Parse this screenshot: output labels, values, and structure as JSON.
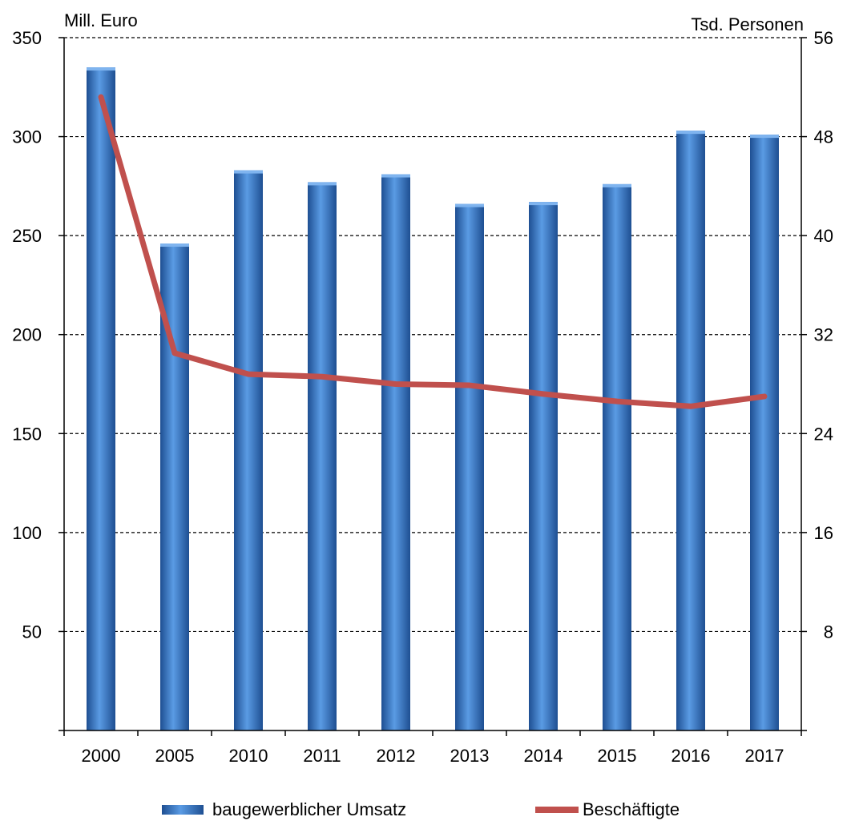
{
  "chart_data": {
    "type": "bar",
    "categories": [
      "2000",
      "2005",
      "2010",
      "2011",
      "2012",
      "2013",
      "2014",
      "2015",
      "2016",
      "2017"
    ],
    "series": [
      {
        "name": "baugewerblicher Umsatz",
        "type": "bar",
        "axis": "left",
        "values": [
          335,
          246,
          283,
          277,
          281,
          266,
          267,
          276,
          303,
          301
        ],
        "color": "#3f7fcf"
      },
      {
        "name": "Beschäftigte",
        "type": "line",
        "axis": "right",
        "values": [
          51.2,
          30.5,
          28.8,
          28.6,
          28.0,
          27.9,
          27.2,
          26.6,
          26.2,
          27.0
        ],
        "color": "#c0504d"
      }
    ],
    "ylabel_left": "Mill. Euro",
    "ylabel_right": "Tsd. Personen",
    "ylim_left": [
      0,
      350
    ],
    "ylim_right": [
      0,
      56
    ],
    "yticks_left": [
      "50",
      "100",
      "150",
      "200",
      "250",
      "300",
      "350"
    ],
    "yticks_right": [
      "8",
      "16",
      "24",
      "32",
      "40",
      "48",
      "56"
    ],
    "grid": "horizontal dashed",
    "legend_position": "bottom"
  }
}
